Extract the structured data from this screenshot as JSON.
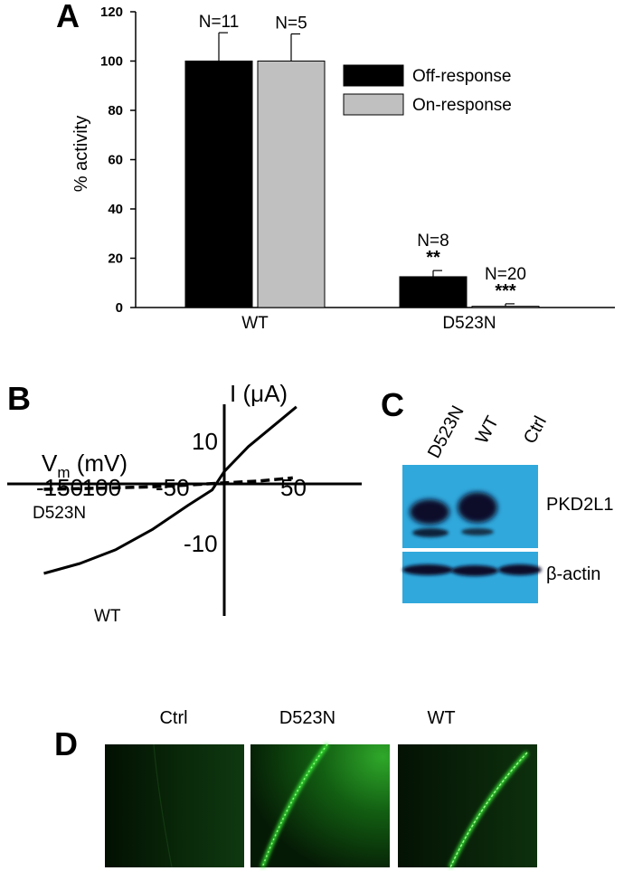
{
  "panels": {
    "A": {
      "letter": "A",
      "ylabel": "% activity",
      "ylim": [
        0,
        120
      ],
      "yticks": [
        0,
        20,
        40,
        60,
        80,
        100,
        120
      ],
      "legend": [
        {
          "label": "Off-response",
          "color": "#000000"
        },
        {
          "label": "On-response",
          "color": "#c0c0c0"
        }
      ]
    },
    "B": {
      "letter": "B",
      "ylabel": "I (μA)",
      "xlabel_main": "V",
      "xlabel_sub": "m",
      "xlabel_unit": " (mV)",
      "xtick_labels": [
        "-150",
        "-100",
        "-50",
        "50"
      ],
      "ytick_labels": [
        "10",
        "-10"
      ],
      "curve_labels": {
        "mutant": "D523N",
        "wt": "WT"
      }
    },
    "C": {
      "letter": "C",
      "lanes": [
        "D523N",
        "WT",
        "Ctrl"
      ],
      "bands": [
        "PKD2L1",
        "β-actin"
      ],
      "blot_color": "#30a8dc"
    },
    "D": {
      "letter": "D",
      "images": [
        "Ctrl",
        "D523N",
        "WT"
      ]
    }
  },
  "chart_data": [
    {
      "type": "bar",
      "panel": "A",
      "categories": [
        "WT",
        "D523N"
      ],
      "series": [
        {
          "name": "Off-response",
          "color": "#000000",
          "values": [
            100,
            12.5
          ],
          "errors": [
            11.5,
            2.5
          ]
        },
        {
          "name": "On-response",
          "color": "#c0c0c0",
          "values": [
            100,
            0.5
          ],
          "errors": [
            11,
            1
          ]
        }
      ],
      "annotations": [
        {
          "category": "WT",
          "series": "Off-response",
          "n": "N=11",
          "sig": ""
        },
        {
          "category": "WT",
          "series": "On-response",
          "n": "N=5",
          "sig": ""
        },
        {
          "category": "D523N",
          "series": "Off-response",
          "n": "N=8",
          "sig": "**"
        },
        {
          "category": "D523N",
          "series": "On-response",
          "n": "N=20",
          "sig": "***"
        }
      ],
      "ylabel": "% activity",
      "ylim": [
        0,
        120
      ]
    },
    {
      "type": "line",
      "panel": "B",
      "xlim": [
        -165,
        70
      ],
      "ylim": [
        -19,
        17
      ],
      "series": [
        {
          "name": "WT",
          "style": "solid",
          "x": [
            -150,
            -120,
            -90,
            -60,
            -30,
            -10,
            0,
            20,
            45,
            60
          ],
          "y": [
            -18,
            -16,
            -13.2,
            -9.2,
            -4.3,
            -1.2,
            2.5,
            7.5,
            12.5,
            15.5
          ]
        },
        {
          "name": "D523N",
          "style": "dashed",
          "x": [
            -150,
            -100,
            -50,
            0,
            30,
            57
          ],
          "y": [
            -1.1,
            -0.85,
            -0.5,
            0.2,
            0.6,
            1.2
          ]
        }
      ]
    }
  ]
}
